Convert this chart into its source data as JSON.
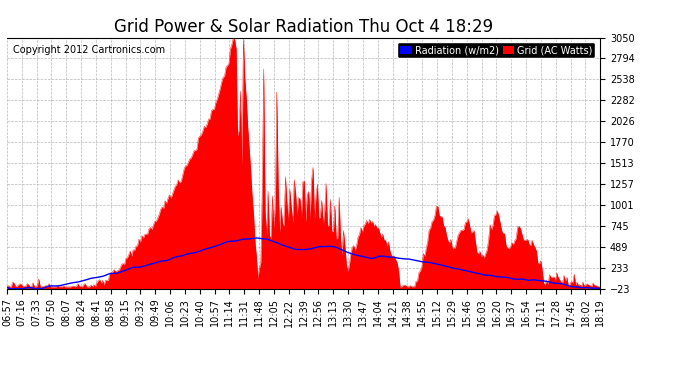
{
  "title": "Grid Power & Solar Radiation Thu Oct 4 18:29",
  "copyright": "Copyright 2012 Cartronics.com",
  "legend_labels": [
    "Radiation (w/m2)",
    "Grid (AC Watts)"
  ],
  "legend_colors": [
    "#0000ff",
    "#ff0000"
  ],
  "background_color": "#ffffff",
  "plot_bg_color": "#ffffff",
  "grid_color": "#b0b0b0",
  "y_min": -23.0,
  "y_max": 3049.9,
  "y_ticks": [
    -23.0,
    233.1,
    489.1,
    745.2,
    1001.3,
    1257.4,
    1513.4,
    1769.5,
    2025.6,
    2281.7,
    2537.7,
    2793.8,
    3049.9
  ],
  "x_labels": [
    "06:57",
    "07:16",
    "07:33",
    "07:50",
    "08:07",
    "08:24",
    "08:41",
    "08:58",
    "09:15",
    "09:32",
    "09:49",
    "10:06",
    "10:23",
    "10:40",
    "10:57",
    "11:14",
    "11:31",
    "11:48",
    "12:05",
    "12:22",
    "12:39",
    "12:56",
    "13:13",
    "13:30",
    "13:47",
    "14:04",
    "14:21",
    "14:38",
    "14:55",
    "15:12",
    "15:29",
    "15:46",
    "16:03",
    "16:20",
    "16:37",
    "16:54",
    "17:11",
    "17:28",
    "17:45",
    "18:02",
    "18:19"
  ],
  "red_fill_color": "#ff0000",
  "blue_line_color": "#0000ff",
  "title_fontsize": 12,
  "tick_fontsize": 7,
  "copyright_fontsize": 7
}
